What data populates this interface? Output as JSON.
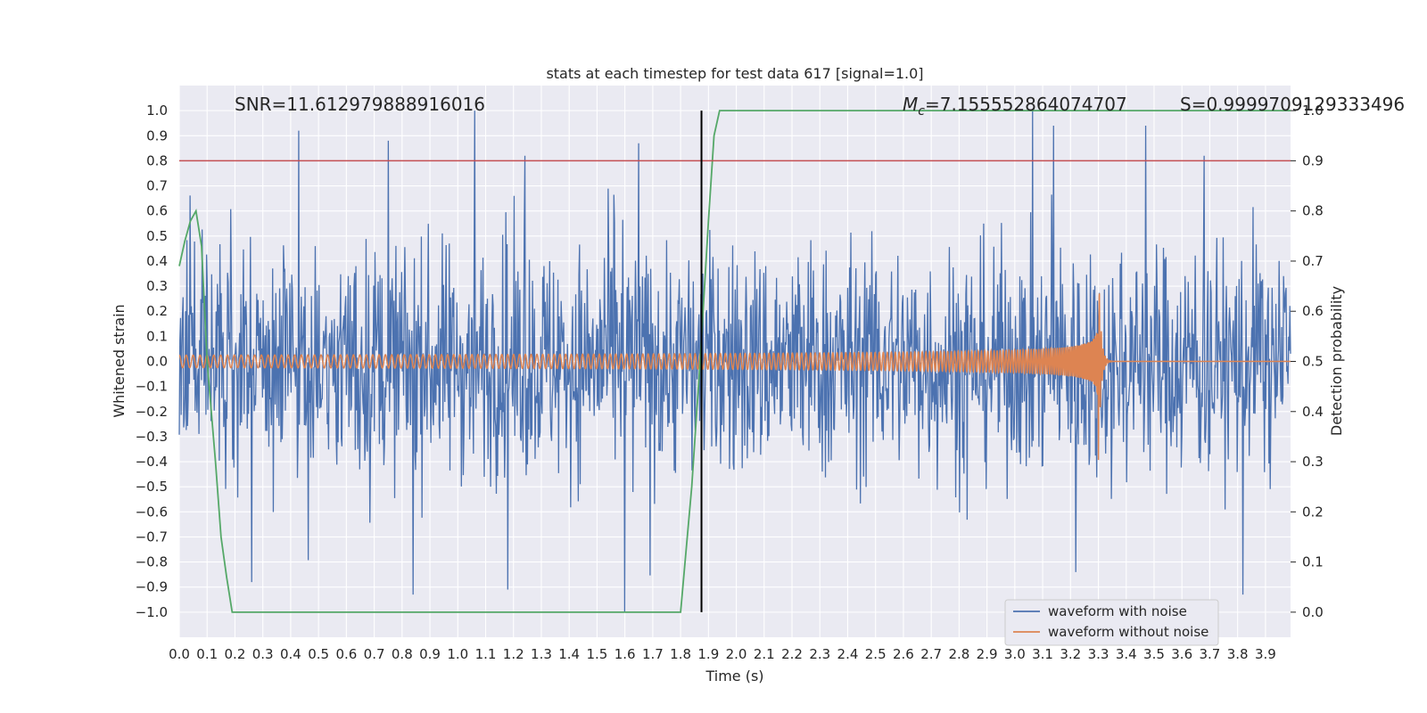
{
  "chart_data": {
    "type": "line",
    "title": "stats at each timestep for test data 617 [signal=1.0]",
    "xlabel": "Time (s)",
    "ylabel": "Whitened strain",
    "y2label": "Detection probability",
    "xlim": [
      0.0,
      3.99
    ],
    "ylim": [
      -1.1,
      1.1
    ],
    "y2lim": [
      -0.05,
      1.05
    ],
    "x_ticks": [
      0.0,
      0.1,
      0.2,
      0.3,
      0.4,
      0.5,
      0.6,
      0.7,
      0.8,
      0.9,
      1.0,
      1.1,
      1.2,
      1.3,
      1.4,
      1.5,
      1.6,
      1.7,
      1.8,
      1.9,
      2.0,
      2.1,
      2.2,
      2.3,
      2.4,
      2.5,
      2.6,
      2.7,
      2.8,
      2.9,
      3.0,
      3.1,
      3.2,
      3.3,
      3.4,
      3.5,
      3.6,
      3.7,
      3.8,
      3.9
    ],
    "x_tick_labels": [
      "0.0",
      "0.1",
      "0.2",
      "0.3",
      "0.4",
      "0.5",
      "0.6",
      "0.7",
      "0.8",
      "0.9",
      "1.0",
      "1.1",
      "1.2",
      "1.3",
      "1.4",
      "1.5",
      "1.6",
      "1.7",
      "1.8",
      "1.9",
      "2.0",
      "2.1",
      "2.2",
      "2.3",
      "2.4",
      "2.5",
      "2.6",
      "2.7",
      "2.8",
      "2.9",
      "3.0",
      "3.1",
      "3.2",
      "3.3",
      "3.4",
      "3.5",
      "3.6",
      "3.7",
      "3.8",
      "3.9"
    ],
    "y_ticks": [
      1.0,
      0.9,
      0.8,
      0.7,
      0.6,
      0.5,
      0.4,
      0.3,
      0.2,
      0.1,
      0.0,
      -0.1,
      -0.2,
      -0.3,
      -0.4,
      -0.5,
      -0.6,
      -0.7,
      -0.8,
      -0.9,
      -1.0
    ],
    "y_tick_labels": [
      "1.0",
      "0.9",
      "0.8",
      "0.7",
      "0.6",
      "0.5",
      "0.4",
      "0.3",
      "0.2",
      "0.1",
      "0.0",
      "−0.1",
      "−0.2",
      "−0.3",
      "−0.4",
      "−0.5",
      "−0.6",
      "−0.7",
      "−0.8",
      "−0.9",
      "−1.0"
    ],
    "y2_ticks": [
      1.0,
      0.9,
      0.8,
      0.7,
      0.6,
      0.5,
      0.4,
      0.3,
      0.2,
      0.1,
      0.0
    ],
    "y2_tick_labels": [
      "1.0",
      "0.9",
      "0.8",
      "0.7",
      "0.6",
      "0.5",
      "0.4",
      "0.3",
      "0.2",
      "0.1",
      "0.0"
    ],
    "grid": true,
    "legend_position": "bottom-right",
    "annotations": {
      "snr": "SNR=11.612979888916016",
      "mc_symbol": "M",
      "mc_sub": "c",
      "mc_value": "=7.155552864074707",
      "s": "S=0.9999709129333496"
    },
    "series": [
      {
        "name": "waveform with noise",
        "color": "#4c72b0",
        "kind": "noise",
        "t_range": [
          0.0,
          3.99
        ],
        "typical_amplitude": 0.45,
        "peaks": [
          {
            "t": 0.43,
            "y": 0.92
          },
          {
            "t": 0.75,
            "y": 0.88
          },
          {
            "t": 1.06,
            "y": 1.0
          },
          {
            "t": 1.24,
            "y": 0.82
          },
          {
            "t": 1.65,
            "y": 0.87
          },
          {
            "t": 1.6,
            "y": -1.0
          },
          {
            "t": 0.84,
            "y": -0.93
          },
          {
            "t": 1.18,
            "y": -0.91
          },
          {
            "t": 0.26,
            "y": -0.88
          },
          {
            "t": 3.14,
            "y": 0.94
          },
          {
            "t": 3.47,
            "y": 0.94
          },
          {
            "t": 3.82,
            "y": -0.93
          },
          {
            "t": 3.22,
            "y": -0.84
          },
          {
            "t": 3.68,
            "y": 0.82
          }
        ]
      },
      {
        "name": "waveform without noise",
        "color": "#dd8452",
        "kind": "chirp",
        "t_merger": 3.3,
        "amplitude_start": 0.025,
        "amplitude_peak": 0.32,
        "amplitude_min": -0.42,
        "frequency_start_hz": 40
      },
      {
        "name": "detection probability",
        "color": "#55a868",
        "axis": "right",
        "x": [
          0.0,
          0.02,
          0.04,
          0.06,
          0.08,
          0.1,
          0.13,
          0.15,
          0.17,
          0.19,
          0.3,
          0.6,
          1.0,
          1.4,
          1.74,
          1.8,
          1.84,
          1.87,
          1.9,
          1.92,
          1.94,
          2.2,
          2.6,
          3.0,
          3.4,
          3.8,
          3.99
        ],
        "y": [
          0.69,
          0.74,
          0.78,
          0.8,
          0.73,
          0.5,
          0.3,
          0.15,
          0.07,
          0.0,
          0.0,
          0.0,
          0.0,
          0.0,
          0.0,
          0.0,
          0.25,
          0.5,
          0.78,
          0.95,
          1.0,
          1.0,
          1.0,
          1.0,
          1.0,
          1.0,
          1.0
        ]
      }
    ],
    "reference_lines": [
      {
        "name": "detection threshold",
        "axis": "right",
        "y": 0.9,
        "color": "#c44e52"
      },
      {
        "name": "detection time",
        "x": 1.875,
        "color": "#000000"
      }
    ]
  }
}
